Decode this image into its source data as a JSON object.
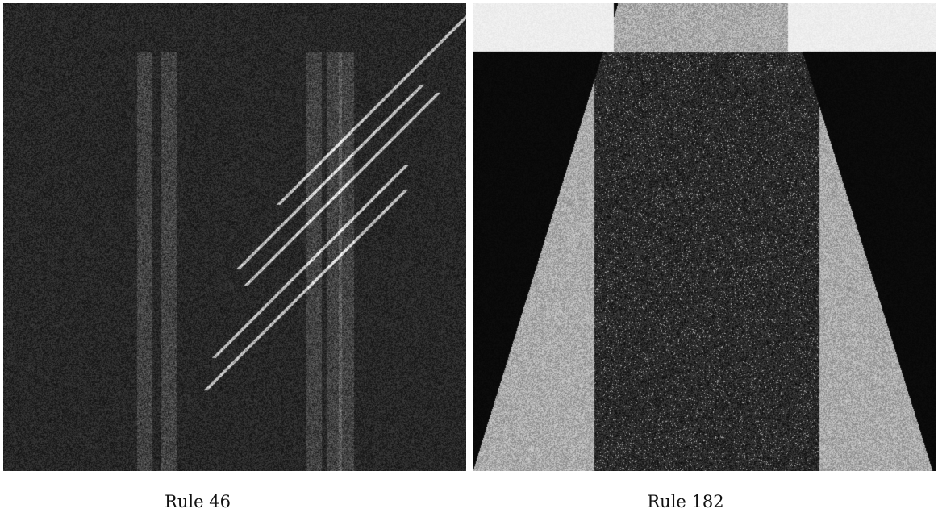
{
  "panels": [
    {
      "caption": "Rule 46",
      "rule": 46
    },
    {
      "caption": "Rule 182",
      "rule": 182
    }
  ],
  "colors": {
    "background": "#ffffff",
    "dark": "#0a0a0a",
    "light": "#ffffff",
    "gray_mid": "#9a9a9a"
  }
}
